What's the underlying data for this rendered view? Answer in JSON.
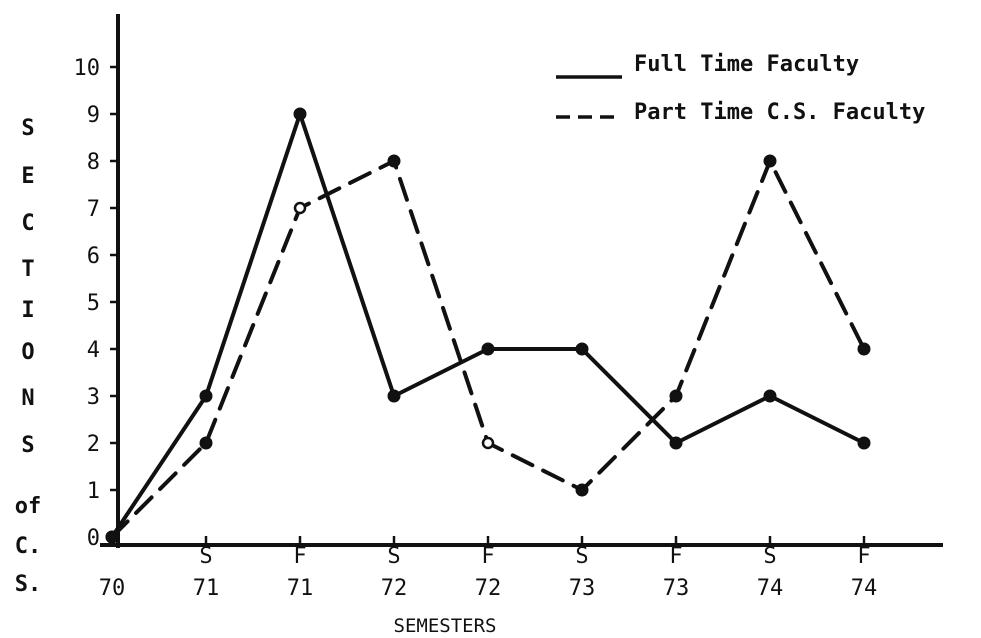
{
  "chart_data": {
    "type": "line",
    "title": "",
    "xlabel": "SEMESTERS",
    "ylabel": "SECTIONS of C.S.",
    "ylabel_lines": [
      "S",
      "E",
      "C",
      "T",
      "I",
      "O",
      "N",
      "S",
      "of",
      "C.",
      "S."
    ],
    "categories": [
      {
        "top": "",
        "bottom": "70"
      },
      {
        "top": "S",
        "bottom": "71"
      },
      {
        "top": "F",
        "bottom": "71"
      },
      {
        "top": "S",
        "bottom": "72"
      },
      {
        "top": "F",
        "bottom": "72"
      },
      {
        "top": "S",
        "bottom": "73"
      },
      {
        "top": "F",
        "bottom": "73"
      },
      {
        "top": "S",
        "bottom": "74"
      },
      {
        "top": "F",
        "bottom": "74"
      }
    ],
    "y_ticks": [
      "0",
      "1",
      "2",
      "3",
      "4",
      "5",
      "6",
      "7",
      "8",
      "9",
      "10"
    ],
    "ylim": [
      0,
      10
    ],
    "grid": false,
    "legend_position": "top-right",
    "series": [
      {
        "name": "Full Time Faculty",
        "style": "solid",
        "color": "#111111",
        "values": [
          0,
          3,
          9,
          3,
          4,
          4,
          2,
          3,
          2
        ]
      },
      {
        "name": "Part Time C.S. Faculty",
        "style": "dashed",
        "color": "#111111",
        "values": [
          0,
          2,
          7,
          8,
          2,
          1,
          3,
          8,
          4
        ]
      }
    ]
  }
}
